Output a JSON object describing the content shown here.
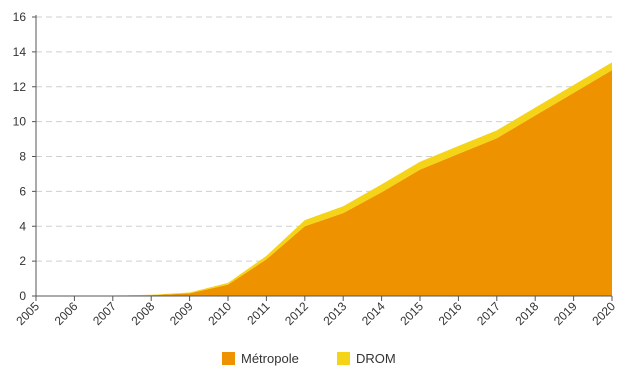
{
  "chart_data": {
    "type": "area",
    "stacked": true,
    "x": [
      "2005",
      "2006",
      "2007",
      "2008",
      "2009",
      "2010",
      "2011",
      "2012",
      "2013",
      "2014",
      "2015",
      "2016",
      "2017",
      "2018",
      "2019",
      "2020"
    ],
    "series": [
      {
        "name": "Métropole",
        "color": "#ef9200",
        "values": [
          0,
          0,
          0.02,
          0.05,
          0.15,
          0.65,
          2.1,
          4.0,
          4.75,
          5.95,
          7.25,
          8.15,
          9.05,
          10.35,
          11.65,
          12.95
        ]
      },
      {
        "name": "DROM",
        "color": "#f5d316",
        "values": [
          0,
          0,
          0.01,
          0.02,
          0.05,
          0.1,
          0.2,
          0.35,
          0.4,
          0.45,
          0.45,
          0.45,
          0.45,
          0.45,
          0.45,
          0.45
        ]
      }
    ],
    "ylim": [
      0,
      16
    ],
    "yticks": [
      "0",
      "2",
      "4",
      "6",
      "8",
      "10",
      "12",
      "14",
      "16"
    ],
    "grid": true,
    "legend_position": "bottom-center"
  }
}
